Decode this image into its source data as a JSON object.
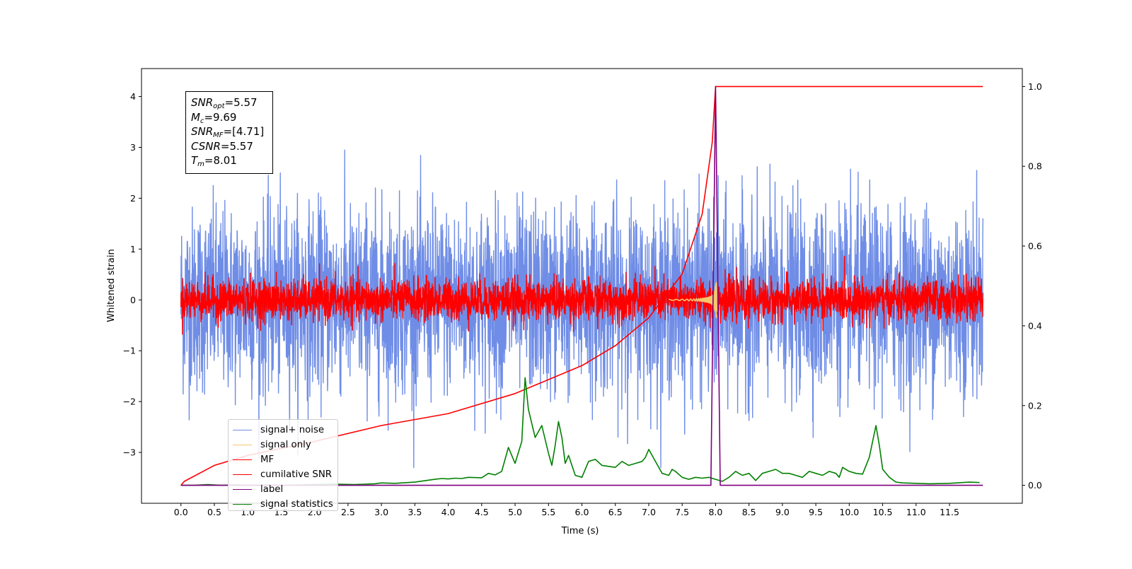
{
  "chart_data": {
    "type": "line",
    "xlabel": "Time (s)",
    "ylabel": "Whitened strain",
    "xlim": [
      -0.59,
      12.59
    ],
    "ylim": [
      -4.0,
      4.55
    ],
    "y2lim": [
      -0.045,
      1.045
    ],
    "x_ticks": [
      "0.0",
      "0.5",
      "1.0",
      "1.5",
      "2.0",
      "2.5",
      "3.0",
      "3.5",
      "4.0",
      "4.5",
      "5.0",
      "5.5",
      "6.0",
      "6.5",
      "7.0",
      "7.5",
      "8.0",
      "8.5",
      "9.0",
      "9.5",
      "10.0",
      "10.5",
      "11.0",
      "11.5"
    ],
    "y_ticks": [
      "−3",
      "−2",
      "−1",
      "0",
      "1",
      "2",
      "3",
      "4"
    ],
    "y2_ticks": [
      "0.0",
      "0.2",
      "0.4",
      "0.6",
      "0.8",
      "1.0"
    ],
    "stats_box": {
      "snr_opt": "SNR",
      "snr_opt_sub": "opt",
      "snr_opt_value": "=5.57",
      "mc": "M",
      "mc_sub": "c",
      "mc_value": "=9.69",
      "snr_mf": "SNR",
      "snr_mf_sub": "MF",
      "snr_mf_value": "=[4.71]",
      "csnr": "CSNR",
      "csnr_value": "=5.57",
      "tm": "T",
      "tm_sub": "m",
      "tm_value": "=8.01"
    },
    "series": [
      {
        "name": "signal+ noise",
        "color": "#6f8de6",
        "kind": "noise",
        "axis": "left",
        "amplitude": 0.9,
        "x_range": [
          0,
          12
        ]
      },
      {
        "name": "signal only",
        "color": "#f5c76b",
        "kind": "chirp",
        "axis": "left",
        "peak_time": 8.01,
        "peak": 0.35
      },
      {
        "name": "MF",
        "color": "#ff0000",
        "kind": "noise",
        "axis": "left",
        "amplitude": 0.2,
        "x_range": [
          0,
          12
        ]
      },
      {
        "name": "cumilative SNR",
        "color": "#ff0000",
        "kind": "curve",
        "axis": "right",
        "x": [
          0.0,
          0.05,
          0.5,
          1.0,
          2.0,
          3.0,
          4.0,
          5.0,
          6.0,
          6.5,
          7.0,
          7.5,
          7.8,
          7.95,
          8.0,
          12.0
        ],
        "y": [
          0.0,
          0.01,
          0.05,
          0.075,
          0.11,
          0.15,
          0.18,
          0.23,
          0.3,
          0.35,
          0.42,
          0.53,
          0.68,
          0.86,
          1.0,
          1.0
        ]
      },
      {
        "name": "label",
        "color": "#800080",
        "kind": "step",
        "axis": "right",
        "x": [
          0.0,
          7.93,
          8.0,
          8.07,
          12.0
        ],
        "y": [
          0.0,
          0.0,
          1.0,
          0.0,
          0.0
        ]
      },
      {
        "name": "signal statistics",
        "color": "#008000",
        "kind": "curve",
        "axis": "right",
        "x": [
          0.0,
          0.2,
          0.4,
          0.6,
          0.8,
          1.0,
          1.2,
          1.5,
          1.8,
          2.0,
          2.3,
          2.6,
          2.9,
          3.0,
          3.2,
          3.5,
          3.8,
          3.9,
          4.0,
          4.1,
          4.2,
          4.3,
          4.5,
          4.6,
          4.7,
          4.8,
          4.9,
          5.0,
          5.1,
          5.15,
          5.2,
          5.3,
          5.4,
          5.5,
          5.55,
          5.6,
          5.65,
          5.7,
          5.75,
          5.8,
          5.9,
          6.0,
          6.1,
          6.2,
          6.3,
          6.5,
          6.6,
          6.7,
          6.8,
          6.9,
          6.95,
          7.0,
          7.1,
          7.2,
          7.3,
          7.35,
          7.4,
          7.5,
          7.6,
          7.7,
          7.8,
          7.9,
          8.0,
          8.1,
          8.2,
          8.3,
          8.4,
          8.5,
          8.6,
          8.7,
          8.8,
          8.9,
          9.0,
          9.1,
          9.2,
          9.3,
          9.4,
          9.5,
          9.6,
          9.7,
          9.8,
          9.85,
          9.9,
          10.0,
          10.1,
          10.2,
          10.3,
          10.4,
          10.45,
          10.5,
          10.6,
          10.7,
          10.8,
          11.0,
          11.2,
          11.5,
          11.8,
          11.95
        ],
        "y": [
          0.0,
          0.0,
          0.002,
          0.0,
          0.001,
          0.0,
          0.001,
          0.0,
          0.001,
          0.002,
          0.003,
          0.002,
          0.004,
          0.006,
          0.005,
          0.008,
          0.015,
          0.017,
          0.016,
          0.018,
          0.017,
          0.02,
          0.019,
          0.03,
          0.026,
          0.035,
          0.095,
          0.055,
          0.11,
          0.27,
          0.19,
          0.12,
          0.15,
          0.08,
          0.05,
          0.1,
          0.16,
          0.12,
          0.055,
          0.075,
          0.025,
          0.02,
          0.06,
          0.065,
          0.05,
          0.045,
          0.06,
          0.05,
          0.055,
          0.06,
          0.07,
          0.09,
          0.06,
          0.03,
          0.025,
          0.04,
          0.035,
          0.02,
          0.015,
          0.02,
          0.018,
          0.02,
          0.015,
          0.01,
          0.02,
          0.035,
          0.025,
          0.03,
          0.012,
          0.03,
          0.035,
          0.04,
          0.03,
          0.03,
          0.025,
          0.02,
          0.035,
          0.03,
          0.025,
          0.035,
          0.03,
          0.02,
          0.045,
          0.035,
          0.03,
          0.028,
          0.07,
          0.15,
          0.1,
          0.04,
          0.02,
          0.008,
          0.006,
          0.005,
          0.004,
          0.005,
          0.008,
          0.007
        ]
      }
    ]
  }
}
